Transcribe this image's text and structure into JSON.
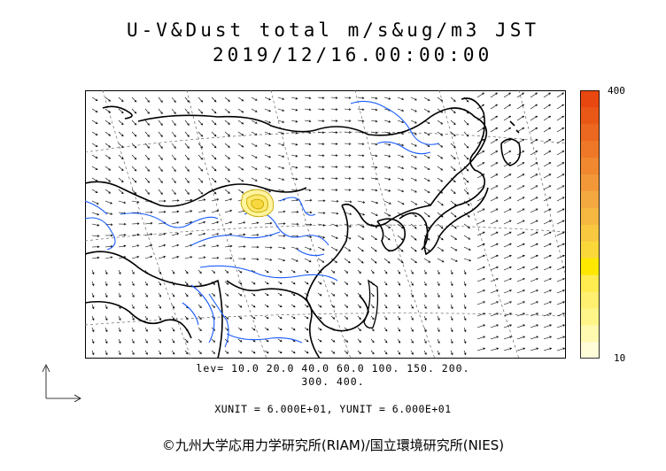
{
  "title": {
    "line1": "U-V&Dust total m/s&ug/m3 JST",
    "line2": "2019/12/16.00:00:00"
  },
  "levels": {
    "line1": "lev= 10.0 20.0 40.0 60.0 100. 150. 200.",
    "line2": "300. 400."
  },
  "units": "XUNIT = 6.000E+01, YUNIT = 6.000E+01",
  "credit": "©九州大学応用力学研究所(RIAM)/国立環境研究所(NIES)",
  "colorbar": {
    "max_label": "400",
    "min_label": "10",
    "colors": [
      "#fffcd8",
      "#fffab0",
      "#fff68a",
      "#fff070",
      "#ffec50",
      "#ffe800",
      "#fbd83a",
      "#f8c840",
      "#f6b840",
      "#f4a840",
      "#f29838",
      "#f08830",
      "#ee7828",
      "#ec6820",
      "#ea5818",
      "#e84810"
    ]
  },
  "colors": {
    "coastline": "#000000",
    "rivers": "#1a5cff",
    "grid": "#555555",
    "dust_contour": "#c8a800",
    "dust_fill": "#fff4a0"
  }
}
